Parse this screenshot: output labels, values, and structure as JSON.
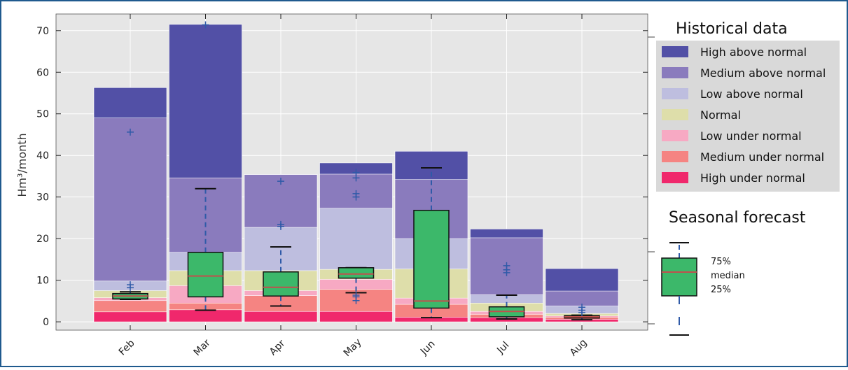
{
  "chart_data": {
    "type": "bar",
    "ylabel": "Hm³/month",
    "ylim": [
      -2,
      74
    ],
    "yticks": [
      0,
      10,
      20,
      30,
      40,
      50,
      60,
      70
    ],
    "categories": [
      "Feb",
      "Mar",
      "Apr",
      "May",
      "Jun",
      "Jul",
      "Aug"
    ],
    "grid": true,
    "series": [
      {
        "name": "High under normal",
        "color": "#f0286c",
        "values": [
          2.4,
          2.9,
          2.5,
          2.5,
          1.1,
          1.0,
          0.6
        ]
      },
      {
        "name": "Medium under normal",
        "color": "#f58482",
        "values": [
          5.1,
          4.5,
          6.3,
          7.8,
          4.2,
          1.8,
          1.1
        ]
      },
      {
        "name": "Low under normal",
        "color": "#f7a9c3",
        "values": [
          5.8,
          8.7,
          7.5,
          10.2,
          5.7,
          2.5,
          1.4
        ]
      },
      {
        "name": "Normal",
        "color": "#dedeaa",
        "values": [
          7.5,
          12.3,
          12.3,
          12.6,
          12.7,
          4.5,
          2.0
        ]
      },
      {
        "name": "Low above normal",
        "color": "#bebedf",
        "values": [
          9.8,
          16.7,
          22.7,
          27.3,
          20.0,
          6.5,
          3.8
        ]
      },
      {
        "name": "Medium above normal",
        "color": "#8a7bbd",
        "values": [
          49.0,
          34.6,
          35.4,
          35.5,
          34.2,
          20.2,
          7.4
        ]
      },
      {
        "name": "High above normal",
        "color": "#5250a6",
        "values": [
          56.3,
          71.5,
          35.4,
          38.2,
          41.0,
          22.3,
          12.8
        ]
      }
    ],
    "forecast_boxes": [
      {
        "category": "Feb",
        "whisker_low": 5.4,
        "q1": 5.5,
        "median": 6.2,
        "q3": 6.8,
        "whisker_high": 7.2,
        "outliers": [
          8.2,
          8.9,
          45.6
        ]
      },
      {
        "category": "Mar",
        "whisker_low": 2.8,
        "q1": 6.0,
        "median": 11.0,
        "q3": 16.7,
        "whisker_high": 32.0,
        "outliers": [
          71.4
        ]
      },
      {
        "category": "Apr",
        "whisker_low": 3.8,
        "q1": 6.2,
        "median": 8.3,
        "q3": 12.0,
        "whisker_high": 18.0,
        "outliers": [
          22.9,
          23.4,
          33.8
        ]
      },
      {
        "category": "May",
        "whisker_low": 7.0,
        "q1": 10.5,
        "median": 11.5,
        "q3": 13.0,
        "whisker_high": 13.0,
        "outliers": [
          5.1,
          6.0,
          6.4,
          30.0,
          30.8,
          34.6,
          35.9
        ]
      },
      {
        "category": "Jun",
        "whisker_low": 1.0,
        "q1": 3.3,
        "median": 5.0,
        "q3": 26.8,
        "whisker_high": 37.0,
        "outliers": []
      },
      {
        "category": "Jul",
        "whisker_low": 0.7,
        "q1": 1.2,
        "median": 2.5,
        "q3": 3.6,
        "whisker_high": 6.4,
        "outliers": [
          11.8,
          12.5,
          13.5
        ]
      },
      {
        "category": "Aug",
        "whisker_low": 0.5,
        "q1": 0.9,
        "median": 1.2,
        "q3": 1.5,
        "whisker_high": 1.6,
        "outliers": [
          2.2,
          2.8,
          3.5
        ]
      }
    ],
    "legend": {
      "placement": "right",
      "historical_title": "Historical data",
      "forecast_title": "Seasonal forecast",
      "forecast_labels": [
        "75%",
        "median",
        "25%"
      ]
    },
    "colors": {
      "plot_background": "#e6e6e6",
      "legend_background": "#d9d9d9",
      "box_fill": "#3cb86a",
      "median_line": "#c0504d",
      "whisker": "#2f5aa8",
      "cap": "#111111",
      "frame": "#1f5a8e"
    }
  }
}
